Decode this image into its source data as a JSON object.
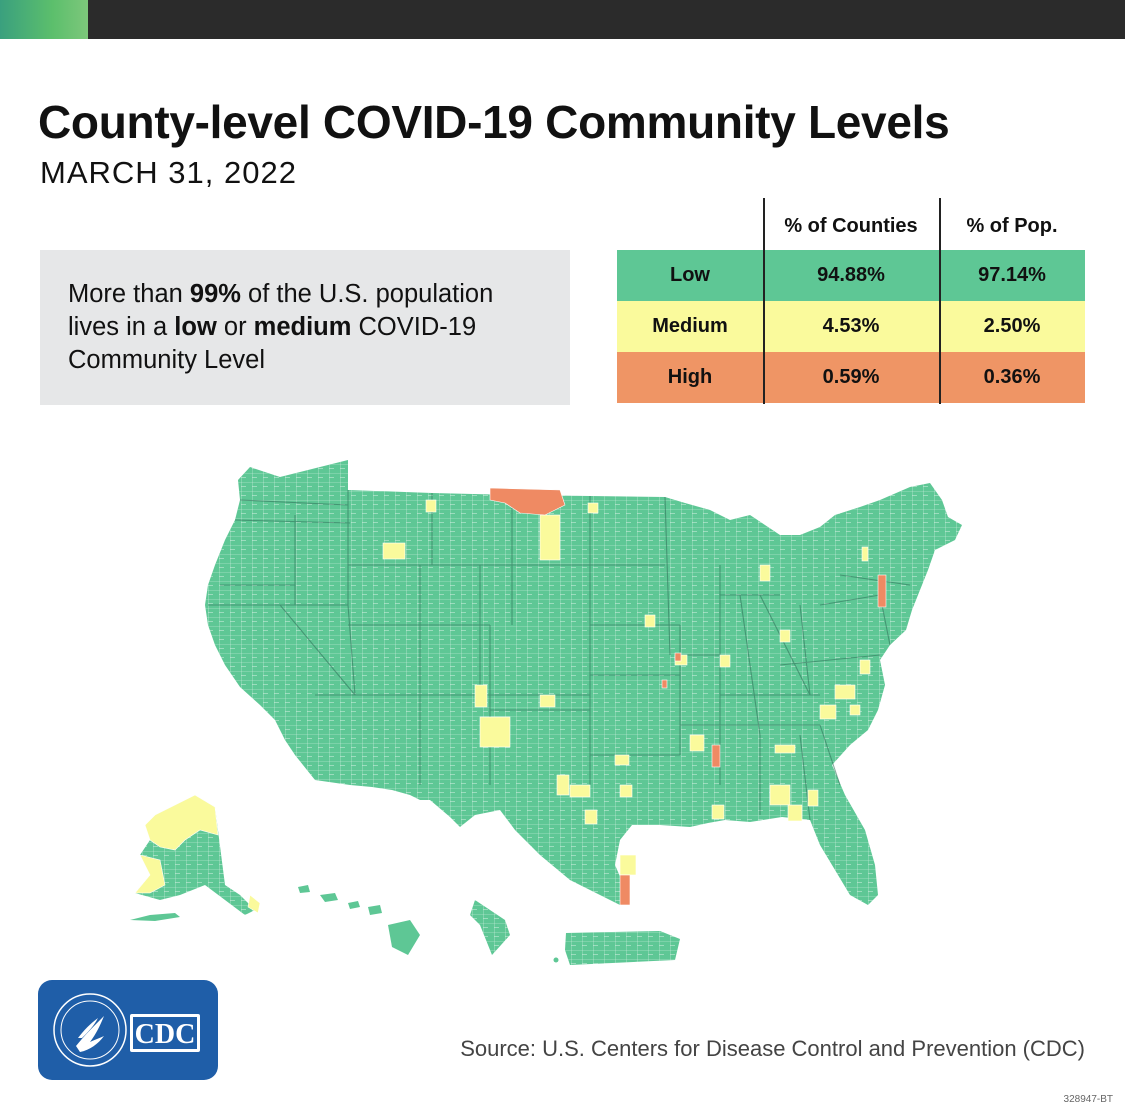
{
  "header": {
    "title": "County-level COVID-19 Community Levels",
    "date": "MARCH 31, 2022"
  },
  "callout": {
    "prefix": "More than ",
    "emph1": "99%",
    "mid1": " of the U.S. population lives in a ",
    "emph2": "low",
    "mid2": " or ",
    "emph3": "medium",
    "suffix": " COVID-19 Community Level"
  },
  "table": {
    "columns": [
      "",
      "% of Counties",
      "% of Pop."
    ],
    "rows": [
      {
        "level": "Low",
        "counties": "94.88%",
        "pop": "97.14%",
        "color": "#5ec795"
      },
      {
        "level": "Medium",
        "counties": "4.53%",
        "pop": "2.50%",
        "color": "#fafa9c"
      },
      {
        "level": "High",
        "counties": "0.59%",
        "pop": "0.36%",
        "color": "#ef9565"
      }
    ]
  },
  "map": {
    "colors": {
      "low": "#5ec795",
      "medium": "#fafa9c",
      "high": "#ef8a63",
      "border": "#ffffff"
    }
  },
  "logo": {
    "text": "CDC"
  },
  "footer": {
    "source": "Source: U.S. Centers for Disease Control and Prevention (CDC)",
    "code": "328947-BT"
  }
}
